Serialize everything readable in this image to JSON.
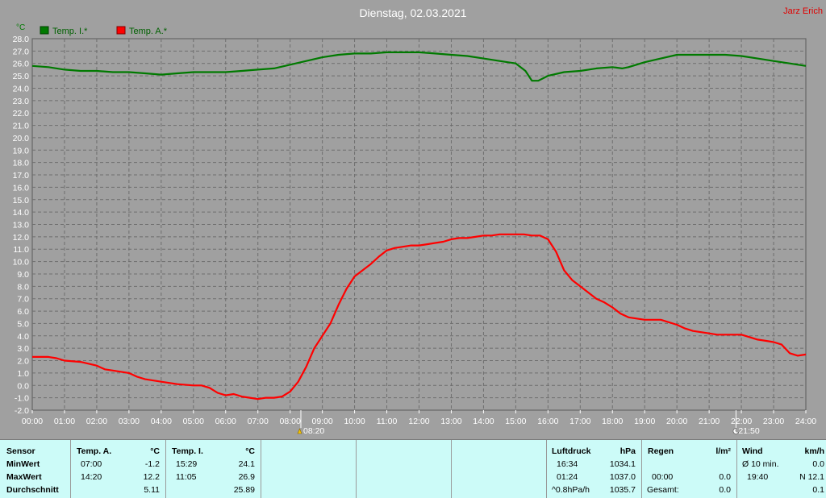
{
  "title": "Dienstag, 02.03.2021",
  "author": "Jarz Erich",
  "legend": [
    {
      "label": "Temp. I.*",
      "color": "#007a00"
    },
    {
      "label": "Temp. A.*",
      "color": "#ff0000"
    }
  ],
  "chart_data": {
    "type": "line",
    "title": "Dienstag, 02.03.2021",
    "ylabel": "°C",
    "ylim": [
      -2.0,
      28.0
    ],
    "y_ticks": [
      "28.0",
      "27.0",
      "26.0",
      "25.0",
      "24.0",
      "23.0",
      "22.0",
      "21.0",
      "20.0",
      "19.0",
      "18.0",
      "17.0",
      "16.0",
      "15.0",
      "14.0",
      "13.0",
      "12.0",
      "11.0",
      "10.0",
      "9.0",
      "8.0",
      "7.0",
      "6.0",
      "5.0",
      "4.0",
      "3.0",
      "2.0",
      "1.0",
      "0.0",
      "-1.0",
      "-2.0"
    ],
    "x_ticks": [
      "00:00",
      "01:00",
      "02:00",
      "03:00",
      "04:00",
      "05:00",
      "06:00",
      "07:00",
      "08:00",
      "09:00",
      "10:00",
      "11:00",
      "12:00",
      "13:00",
      "14:00",
      "15:00",
      "16:00",
      "17:00",
      "18:00",
      "19:00",
      "20:00",
      "21:00",
      "22:00",
      "23:00",
      "24:00"
    ],
    "xlim_hours": [
      0,
      24
    ],
    "grid": true,
    "legend_position": "top-left",
    "series": [
      {
        "name": "Temp. I.*",
        "color": "#007a00",
        "x_hours": [
          0,
          0.5,
          1,
          1.5,
          2,
          2.5,
          3,
          3.5,
          4,
          4.5,
          5,
          5.5,
          6,
          6.5,
          7,
          7.5,
          8,
          8.5,
          9,
          9.5,
          10,
          10.5,
          11,
          11.5,
          12,
          12.5,
          13,
          13.5,
          14,
          14.5,
          15,
          15.3,
          15.5,
          15.7,
          16,
          16.5,
          17,
          17.5,
          18,
          18.3,
          18.5,
          19,
          19.5,
          20,
          20.5,
          21,
          21.5,
          22,
          22.5,
          23,
          23.5,
          24
        ],
        "y": [
          25.8,
          25.7,
          25.5,
          25.4,
          25.4,
          25.3,
          25.3,
          25.2,
          25.1,
          25.2,
          25.3,
          25.3,
          25.3,
          25.4,
          25.5,
          25.6,
          25.9,
          26.2,
          26.5,
          26.7,
          26.8,
          26.8,
          26.9,
          26.9,
          26.9,
          26.8,
          26.7,
          26.6,
          26.4,
          26.2,
          26.0,
          25.4,
          24.6,
          24.6,
          25.0,
          25.3,
          25.4,
          25.6,
          25.7,
          25.6,
          25.7,
          26.1,
          26.4,
          26.7,
          26.7,
          26.7,
          26.7,
          26.6,
          26.4,
          26.2,
          26.0,
          25.8
        ]
      },
      {
        "name": "Temp. A.*",
        "color": "#ff0000",
        "x_hours": [
          0,
          0.5,
          0.75,
          1,
          1.5,
          2,
          2.25,
          2.5,
          3,
          3.25,
          3.5,
          4,
          4.5,
          5,
          5.25,
          5.5,
          5.75,
          6,
          6.25,
          6.5,
          6.75,
          7,
          7.25,
          7.5,
          7.75,
          8,
          8.25,
          8.5,
          8.75,
          9,
          9.25,
          9.5,
          9.75,
          10,
          10.25,
          10.5,
          10.75,
          11,
          11.25,
          11.5,
          11.75,
          12,
          12.25,
          12.5,
          12.75,
          13,
          13.25,
          13.5,
          13.75,
          14,
          14.25,
          14.5,
          14.75,
          15,
          15.25,
          15.5,
          15.75,
          16,
          16.25,
          16.5,
          16.75,
          17,
          17.25,
          17.5,
          17.75,
          18,
          18.25,
          18.5,
          18.75,
          19,
          19.5,
          20,
          20.25,
          20.5,
          20.75,
          21,
          21.25,
          21.5,
          21.75,
          22,
          22.25,
          22.5,
          22.75,
          23,
          23.25,
          23.5,
          23.75,
          24
        ],
        "y": [
          2.3,
          2.3,
          2.2,
          2.0,
          1.9,
          1.6,
          1.3,
          1.2,
          1.0,
          0.7,
          0.5,
          0.3,
          0.1,
          0.0,
          0.0,
          -0.2,
          -0.6,
          -0.8,
          -0.7,
          -0.9,
          -1.0,
          -1.1,
          -1.0,
          -1.0,
          -0.9,
          -0.5,
          0.3,
          1.5,
          3.0,
          4.0,
          5.0,
          6.5,
          7.8,
          8.8,
          9.3,
          9.8,
          10.4,
          10.9,
          11.1,
          11.2,
          11.3,
          11.3,
          11.4,
          11.5,
          11.6,
          11.8,
          11.9,
          11.9,
          12.0,
          12.1,
          12.1,
          12.2,
          12.2,
          12.2,
          12.2,
          12.1,
          12.1,
          11.8,
          10.8,
          9.3,
          8.5,
          8.0,
          7.5,
          7.0,
          6.7,
          6.3,
          5.8,
          5.5,
          5.4,
          5.3,
          5.3,
          4.9,
          4.6,
          4.4,
          4.3,
          4.2,
          4.1,
          4.1,
          4.1,
          4.1,
          3.9,
          3.7,
          3.6,
          3.5,
          3.3,
          2.6,
          2.4,
          2.5
        ]
      }
    ],
    "markers": [
      {
        "time": "08:20",
        "label": "08:20",
        "icon": "sunrise-icon"
      },
      {
        "time": "21:50",
        "label": "21:50",
        "icon": "moon-icon"
      }
    ]
  },
  "table": {
    "sensor_col": {
      "header": "Sensor",
      "rows": [
        "MinWert",
        "MaxWert",
        "Durchschnitt"
      ]
    },
    "temp_a": {
      "header": "Temp. A.",
      "unit": "°C",
      "times": [
        "07:00",
        "14:20",
        ""
      ],
      "values": [
        "-1.2",
        "12.2",
        "5.11"
      ]
    },
    "temp_i": {
      "header": "Temp. I.",
      "unit": "°C",
      "times": [
        "15:29",
        "11:05",
        ""
      ],
      "values": [
        "24.1",
        "26.9",
        "25.89"
      ]
    },
    "luftdruck": {
      "header": "Luftdruck",
      "unit": "hPa",
      "times": [
        "16:34",
        "01:24",
        "^0.8hPa/h"
      ],
      "values": [
        "1034.1",
        "1037.0",
        "1035.7"
      ]
    },
    "regen": {
      "header": "Regen",
      "unit": "l/m²",
      "times": [
        "",
        "00:00",
        "Gesamt:"
      ],
      "values": [
        "",
        "0.0",
        "0.0"
      ]
    },
    "wind": {
      "header": "Wind",
      "unit": "km/h",
      "times": [
        "Ø 10 min.",
        "19:40",
        ""
      ],
      "values": [
        "0.0",
        "N 12.1",
        "0.1"
      ]
    }
  }
}
